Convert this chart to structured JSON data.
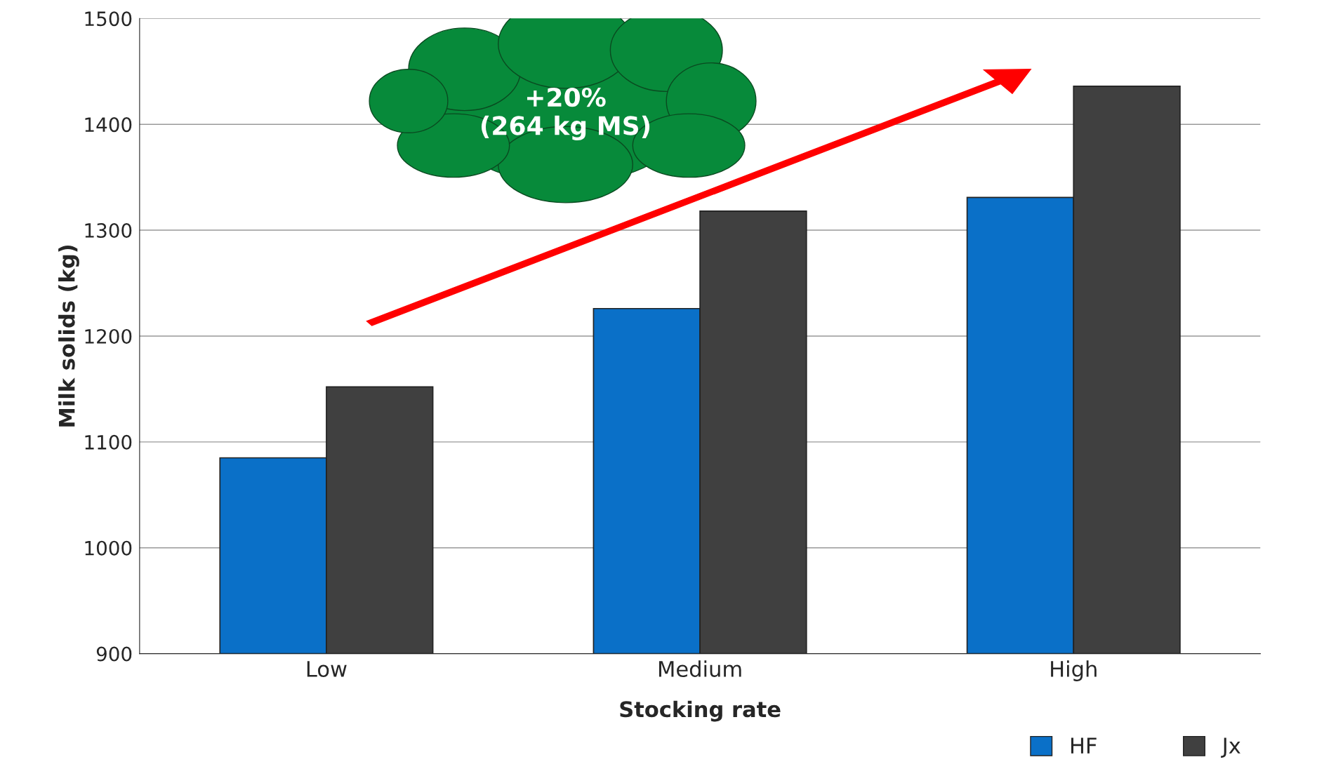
{
  "chart_data": {
    "type": "bar",
    "xlabel": "Stocking rate",
    "ylabel": "Milk solids (kg)",
    "categories": [
      "Low",
      "Medium",
      "High"
    ],
    "series": [
      {
        "name": "HF",
        "color": "#0a70c8",
        "values": [
          1085,
          1226,
          1331
        ]
      },
      {
        "name": "Jx",
        "color": "#404040",
        "values": [
          1152,
          1318,
          1436
        ]
      }
    ],
    "ylim": [
      900,
      1500
    ],
    "yticks": [
      900,
      1000,
      1100,
      1200,
      1300,
      1400,
      1500
    ],
    "grid": "y",
    "legend": "bottom right",
    "annotations": [
      "+20%\n(264 kg MS)"
    ]
  }
}
